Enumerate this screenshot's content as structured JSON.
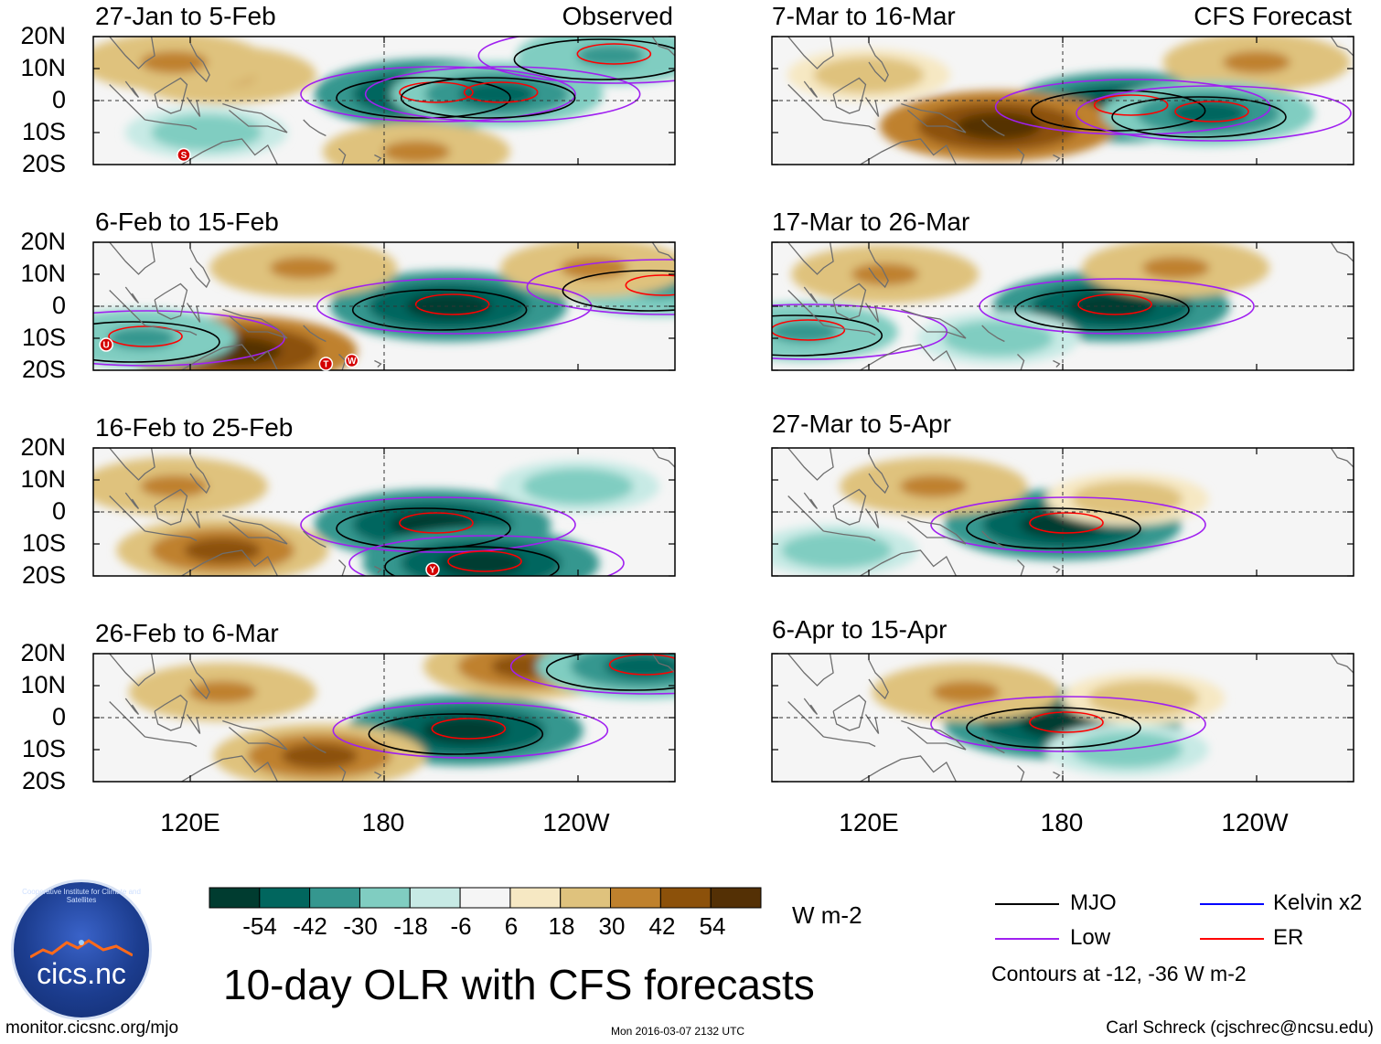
{
  "figure": {
    "title": "10-day OLR with CFS forecasts",
    "website": "monitor.cicsnc.org/mjo",
    "timestamp": "Mon 2016-03-07 2132 UTC",
    "author": "Carl Schreck (cjschrec@ncsu.edu)",
    "logo_text": "cics.nc",
    "logo_arc_text": "Cooperative Institute for Climate and Satellites"
  },
  "axes": {
    "lat_labels": [
      "20N",
      "10N",
      "0",
      "10S",
      "20S"
    ],
    "lon_labels": [
      "120E",
      "180",
      "120W"
    ]
  },
  "panels": [
    {
      "title": "27-Jan to 5-Feb",
      "tag": "Observed"
    },
    {
      "title": "6-Feb to 15-Feb",
      "tag": ""
    },
    {
      "title": "16-Feb to 25-Feb",
      "tag": ""
    },
    {
      "title": "26-Feb to 6-Mar",
      "tag": ""
    },
    {
      "title": "7-Mar to 16-Mar",
      "tag": "CFS Forecast"
    },
    {
      "title": "17-Mar to 26-Mar",
      "tag": ""
    },
    {
      "title": "27-Mar to 5-Apr",
      "tag": ""
    },
    {
      "title": "6-Apr to 15-Apr",
      "tag": ""
    }
  ],
  "colorbar": {
    "units": "W m-2",
    "ticks": [
      "-54",
      "-42",
      "-30",
      "-18",
      "-6",
      "6",
      "18",
      "30",
      "42",
      "54"
    ],
    "colors": [
      "#003c30",
      "#01665e",
      "#35978f",
      "#80cdc1",
      "#c7eae5",
      "#f5f5f5",
      "#f6e8c3",
      "#dfc27d",
      "#bf812d",
      "#8c510a",
      "#543005"
    ]
  },
  "legend": {
    "items": [
      {
        "label": "MJO",
        "color": "#000000"
      },
      {
        "label": "Kelvin x2",
        "color": "#0000ff"
      },
      {
        "label": "Low",
        "color": "#a020f0"
      },
      {
        "label": "ER",
        "color": "#ff0000"
      }
    ],
    "note": "Contours at -12, -36 W m-2"
  },
  "storm_markers": [
    {
      "panel": 0,
      "label": "S"
    },
    {
      "panel": 1,
      "label": "U"
    },
    {
      "panel": 1,
      "label": "T"
    },
    {
      "panel": 1,
      "label": "W"
    },
    {
      "panel": 2,
      "label": "Y"
    }
  ],
  "chart_data": {
    "type": "heatmap",
    "title": "10-day OLR with CFS forecasts",
    "variable": "OLR anomaly",
    "units": "W m-2",
    "lon_range": [
      "90E",
      "90W"
    ],
    "lat_range": [
      "20S",
      "20N"
    ],
    "contour_levels": [
      -12,
      -36
    ],
    "panels": [
      {
        "period": "27-Jan to 5-Feb",
        "source": "Observed",
        "anomalies": [
          {
            "lon": 130,
            "lat": 8,
            "value": 30
          },
          {
            "lon": 115,
            "lat": 12,
            "value": 30
          },
          {
            "lon": 195,
            "lat": 2,
            "value": -54
          },
          {
            "lon": 215,
            "lat": 2,
            "value": -42
          },
          {
            "lon": 250,
            "lat": 14,
            "value": -30
          },
          {
            "lon": 190,
            "lat": -16,
            "value": 30
          },
          {
            "lon": 125,
            "lat": -10,
            "value": -18
          }
        ]
      },
      {
        "period": "6-Feb to 15-Feb",
        "source": "Observed",
        "anomalies": [
          {
            "lon": 135,
            "lat": -14,
            "value": 54
          },
          {
            "lon": 200,
            "lat": 0,
            "value": -54
          },
          {
            "lon": 155,
            "lat": 12,
            "value": 30
          },
          {
            "lon": 105,
            "lat": -10,
            "value": -30
          },
          {
            "lon": 265,
            "lat": 6,
            "value": -30
          },
          {
            "lon": 245,
            "lat": 12,
            "value": 30
          }
        ]
      },
      {
        "period": "16-Feb to 25-Feb",
        "source": "Observed",
        "anomalies": [
          {
            "lon": 195,
            "lat": -4,
            "value": -54
          },
          {
            "lon": 130,
            "lat": -12,
            "value": 42
          },
          {
            "lon": 115,
            "lat": 8,
            "value": 30
          },
          {
            "lon": 210,
            "lat": -16,
            "value": -54
          },
          {
            "lon": 240,
            "lat": 8,
            "value": -18
          }
        ]
      },
      {
        "period": "26-Feb to 6-Mar",
        "source": "Observed",
        "anomalies": [
          {
            "lon": 205,
            "lat": -4,
            "value": -54
          },
          {
            "lon": 160,
            "lat": -12,
            "value": 42
          },
          {
            "lon": 225,
            "lat": 16,
            "value": 42
          },
          {
            "lon": 260,
            "lat": 16,
            "value": -42
          },
          {
            "lon": 130,
            "lat": 8,
            "value": 30
          }
        ]
      },
      {
        "period": "7-Mar to 16-Mar",
        "source": "CFS Forecast",
        "anomalies": [
          {
            "lon": 200,
            "lat": -2,
            "value": -54
          },
          {
            "lon": 160,
            "lat": -8,
            "value": 54
          },
          {
            "lon": 240,
            "lat": 12,
            "value": 30
          },
          {
            "lon": 225,
            "lat": -4,
            "value": -42
          },
          {
            "lon": 120,
            "lat": 8,
            "value": 18
          }
        ]
      },
      {
        "period": "17-Mar to 26-Mar",
        "source": "CFS Forecast",
        "anomalies": [
          {
            "lon": 195,
            "lat": 0,
            "value": -54
          },
          {
            "lon": 125,
            "lat": 10,
            "value": 30
          },
          {
            "lon": 215,
            "lat": 12,
            "value": 30
          },
          {
            "lon": 100,
            "lat": -8,
            "value": -30
          },
          {
            "lon": 160,
            "lat": -10,
            "value": -18
          }
        ]
      },
      {
        "period": "27-Mar to 5-Apr",
        "source": "CFS Forecast",
        "anomalies": [
          {
            "lon": 180,
            "lat": -4,
            "value": -54
          },
          {
            "lon": 140,
            "lat": 8,
            "value": 30
          },
          {
            "lon": 200,
            "lat": 4,
            "value": 18
          },
          {
            "lon": 110,
            "lat": -12,
            "value": -18
          }
        ]
      },
      {
        "period": "6-Apr to 15-Apr",
        "source": "CFS Forecast",
        "anomalies": [
          {
            "lon": 180,
            "lat": -2,
            "value": -54
          },
          {
            "lon": 150,
            "lat": 8,
            "value": 30
          },
          {
            "lon": 205,
            "lat": 6,
            "value": 18
          },
          {
            "lon": 200,
            "lat": -10,
            "value": -18
          }
        ]
      }
    ]
  }
}
